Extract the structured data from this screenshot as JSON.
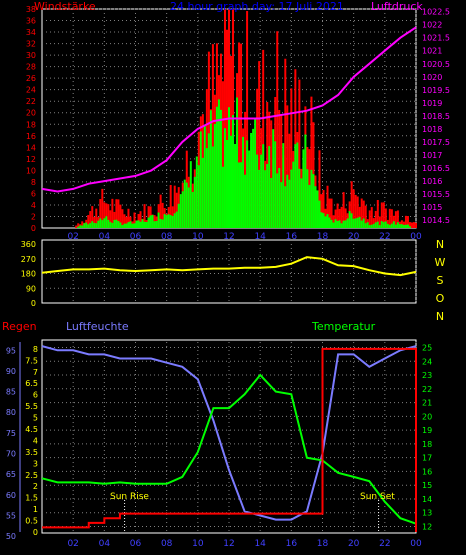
{
  "header": {
    "wind_label": "Windstärke",
    "title": "24 hour graph day: 17 Juli 2021",
    "pressure_label": "Luftdruck"
  },
  "lower": {
    "rain_label": "Regen",
    "humidity_label": "Luftfeuchte",
    "temperature_label": "Temperatur",
    "sunrise_label": "Sun Rise",
    "sunset_label": "Sun Set"
  },
  "colors": {
    "wind_gust": "#ff0000",
    "wind_avg": "#00ff00",
    "pressure": "#ff00ff",
    "direction": "#ffff00",
    "humidity": "#7b7bff",
    "temperature": "#00ff00",
    "rain": "#ff0000",
    "grid": "#808080",
    "axis_text": "#4040ff"
  },
  "chart_data": [
    {
      "type": "bar",
      "title": "24 hour graph day: 17 Juli 2021",
      "ylabel": "Windstärke",
      "y2label": "Luftdruck",
      "x_ticks": [
        "02",
        "04",
        "06",
        "08",
        "10",
        "12",
        "14",
        "16",
        "18",
        "20",
        "22",
        "00"
      ],
      "left_ticks": [
        0,
        2,
        4,
        6,
        8,
        10,
        12,
        14,
        16,
        18,
        20,
        22,
        24,
        26,
        28,
        30,
        32,
        34,
        36,
        38
      ],
      "right_ticks": [
        "1014.5",
        "1015",
        "1015.5",
        "1016",
        "1016.5",
        "1017",
        "1017.5",
        "1018",
        "1018.5",
        "1019",
        "1019.5",
        "1020",
        "1020.5",
        "1021",
        "1021.5",
        "1022",
        "1022.5"
      ],
      "ylim": [
        0,
        38
      ],
      "y2lim": [
        1014.2,
        1022.6
      ],
      "hours": [
        0,
        1,
        2,
        3,
        4,
        5,
        6,
        7,
        8,
        9,
        10,
        11,
        12,
        13,
        14,
        15,
        16,
        17,
        18,
        19,
        20,
        21,
        22,
        23,
        24
      ],
      "gust_hourly": [
        0,
        0,
        0,
        3,
        6,
        4,
        3,
        4,
        6,
        10,
        22,
        28,
        38,
        32,
        26,
        30,
        24,
        24,
        8,
        4,
        8,
        4,
        4,
        3,
        2
      ],
      "avg_hourly": [
        0,
        0,
        0,
        1,
        2,
        1,
        1,
        2,
        3,
        6,
        14,
        18,
        20,
        18,
        16,
        17,
        12,
        14,
        3,
        1,
        3,
        1,
        1,
        1,
        0
      ],
      "pressure_hourly": [
        1015.7,
        1015.6,
        1015.7,
        1015.9,
        1016.0,
        1016.1,
        1016.2,
        1016.4,
        1016.8,
        1017.5,
        1018.0,
        1018.3,
        1018.4,
        1018.4,
        1018.4,
        1018.5,
        1018.6,
        1018.7,
        1018.9,
        1019.3,
        1020.0,
        1020.5,
        1021.0,
        1021.5,
        1021.9
      ]
    },
    {
      "type": "line",
      "ylabel": "Windrichtung",
      "left_ticks": [
        0,
        90,
        180,
        270,
        360
      ],
      "right_labels": [
        "N",
        "W",
        "S",
        "O",
        "N"
      ],
      "ylim": [
        0,
        360
      ],
      "hours": [
        0,
        1,
        2,
        3,
        4,
        5,
        6,
        7,
        8,
        9,
        10,
        11,
        12,
        13,
        14,
        15,
        16,
        17,
        18,
        19,
        20,
        21,
        22,
        23,
        24
      ],
      "direction_hourly": [
        185,
        195,
        205,
        205,
        210,
        200,
        195,
        200,
        205,
        200,
        205,
        210,
        210,
        215,
        215,
        220,
        240,
        280,
        270,
        230,
        225,
        200,
        180,
        170,
        190
      ]
    },
    {
      "type": "line",
      "title": "",
      "x_ticks": [
        "02",
        "04",
        "06",
        "08",
        "10",
        "12",
        "14",
        "16",
        "18",
        "20",
        "22",
        "00"
      ],
      "humidity_ticks": [
        50,
        55,
        60,
        65,
        70,
        75,
        80,
        85,
        90,
        95
      ],
      "rain_ticks": [
        "0",
        "0.5",
        "1",
        "1.5",
        "2",
        "2.5",
        "3",
        "3.5",
        "4",
        "4.5",
        "5",
        "5.5",
        "6",
        "6.5",
        "7",
        "7.5",
        "8"
      ],
      "temperature_ticks": [
        12,
        13,
        14,
        15,
        16,
        17,
        18,
        19,
        20,
        21,
        22,
        23,
        24,
        25
      ],
      "humidity_ylim": [
        51,
        97
      ],
      "rain_ylim": [
        0,
        8.3
      ],
      "temperature_ylim": [
        11.6,
        25.4
      ],
      "hours": [
        0,
        1,
        2,
        3,
        4,
        5,
        6,
        7,
        8,
        9,
        10,
        11,
        12,
        13,
        14,
        15,
        16,
        17,
        18,
        19,
        20,
        21,
        22,
        23,
        24
      ],
      "humidity_hourly": [
        96,
        95,
        95,
        94,
        94,
        93,
        93,
        93,
        92,
        91,
        88,
        78,
        66,
        56,
        55,
        54,
        54,
        56,
        70,
        94,
        94,
        91,
        93,
        95,
        96
      ],
      "temperature_hourly": [
        15.5,
        15.2,
        15.2,
        15.2,
        15.1,
        15.2,
        15.1,
        15.1,
        15.1,
        15.6,
        17.4,
        20.6,
        20.6,
        21.6,
        23.0,
        21.8,
        21.6,
        17.0,
        16.8,
        15.9,
        15.6,
        15.3,
        13.8,
        12.6,
        12.2
      ],
      "rain_hourly": [
        0.2,
        0.2,
        0.2,
        0.4,
        0.6,
        0.8,
        0.8,
        0.8,
        0.8,
        0.8,
        0.8,
        0.8,
        0.8,
        0.8,
        0.8,
        0.8,
        0.8,
        0.8,
        8.0,
        8.0,
        8.0,
        8.0,
        8.0,
        8.0,
        8.0
      ],
      "sunrise_hour": 5.3,
      "sunset_hour": 21.6
    }
  ]
}
